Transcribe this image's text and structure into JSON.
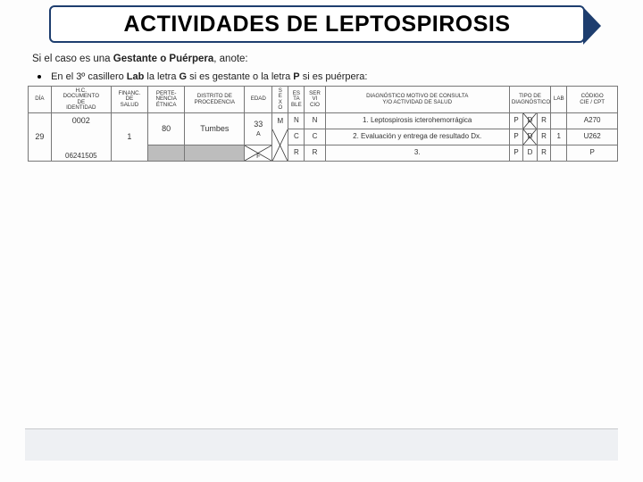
{
  "title": "ACTIVIDADES DE LEPTOSPIROSIS",
  "instruction_prefix": "Si el caso es una ",
  "instruction_bold": "Gestante o Puérpera",
  "instruction_suffix": ", anote:",
  "bullet_prefix": "En el 3º casillero ",
  "bullet_b1": "Lab",
  "bullet_mid1": " la letra ",
  "bullet_b2": "G",
  "bullet_mid2": " si es gestante o la letra ",
  "bullet_b3": "P",
  "bullet_mid3": " si es puérpera:",
  "headers": {
    "dia": "DÍA",
    "hc": "H.C.\nDOCUMENTO\nDE\nIDENTIDAD",
    "financ": "FINANC.\nDE\nSALUD",
    "perten": "PERTE-\nNENCIA\nÉTNICA",
    "distrito": "DISTRITO DE\nPROCEDENCIA",
    "edad": "EDAD",
    "sexo": "S\nE\nX\nO",
    "est": "ES\nTA\nBLE",
    "serv": "SER\nVI\nCIO",
    "diag": "DIAGNÓSTICO MOTIVO DE CONSULTA\nY/O ACTIVIDAD DE SALUD",
    "tipo": "TIPO DE\nDIAGNÓSTICO",
    "lab": "LAB",
    "cie": "CÓDIGO\nCIE / CPT"
  },
  "row1": {
    "hc": "0002",
    "sexo_top": "M",
    "est": "N",
    "serv": "N",
    "diag_num": "1.",
    "diag_text": "Leptospirosis icterohemorrágica",
    "tipo_P": "P",
    "tipo_D": "D",
    "tipo_R": "R",
    "cie": "A270"
  },
  "row2": {
    "dia": "29",
    "financ": "1",
    "perten": "80",
    "distrito": "Tumbes",
    "edad": "33",
    "edad_unit": "A",
    "est": "C",
    "serv": "C",
    "diag_num": "2.",
    "diag_text": "Evaluación y entrega de resultado Dx.",
    "tipo_P": "P",
    "tipo_D": "D",
    "tipo_R": "R",
    "lab": "1",
    "cie": "U262"
  },
  "row3": {
    "sexo_bot": "F",
    "est": "R",
    "serv": "R",
    "diag_num": "3.",
    "tipo_P": "P",
    "tipo_D": "D",
    "tipo_R": "R",
    "cie_P": "P"
  }
}
